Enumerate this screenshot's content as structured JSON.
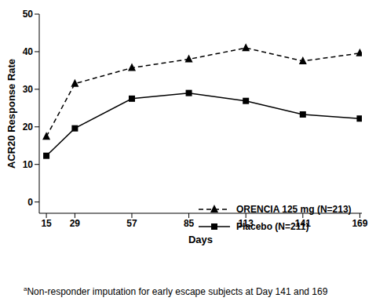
{
  "chart_data": {
    "type": "line",
    "x_label": "Days",
    "y_label": "ACR20 Response Rate",
    "x": [
      15,
      29,
      57,
      85,
      113,
      141,
      169
    ],
    "xlim": [
      11.5,
      170
    ],
    "xticks": [
      15,
      29,
      57,
      85,
      113,
      141,
      169
    ],
    "ylim": [
      -3,
      50
    ],
    "yticks": [
      0,
      10,
      20,
      30,
      40,
      50
    ],
    "grid": false,
    "legend": "lower right",
    "series": [
      {
        "name": "ORENCIA 125 mg (N=213)",
        "color": "#000000",
        "marker": "triangle",
        "line_style": "dashed",
        "values": [
          17.4,
          31.5,
          35.7,
          38,
          41,
          37.5,
          39.6
        ]
      },
      {
        "name": "Placebo (N=211)",
        "color": "#000000",
        "marker": "square",
        "line_style": "solid",
        "values": [
          12.3,
          19.6,
          27.5,
          29,
          26.9,
          23.3,
          22.2
        ]
      }
    ],
    "footnote": {
      "marker": "a",
      "text": "Non-responder imputation for early escape subjects at Day 141 and 169"
    }
  }
}
